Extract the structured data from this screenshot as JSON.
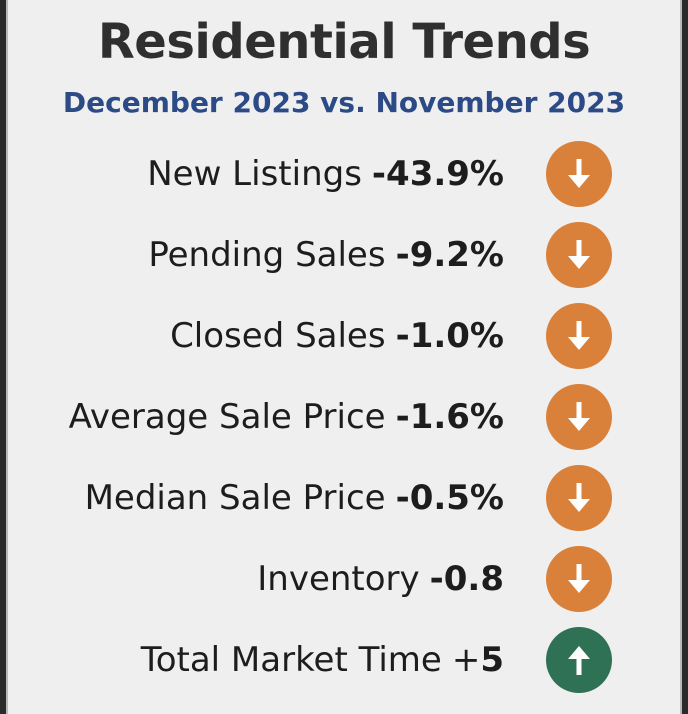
{
  "title": "Residential Trends",
  "subtitle": "December 2023 vs. November 2023",
  "colors": {
    "down": "#d9803a",
    "up": "#2f7154",
    "title": "#2f2f2f",
    "subtitle": "#2c4b86",
    "background": "#efefef"
  },
  "metrics": [
    {
      "label": "New Listings",
      "value": "-43.9%",
      "trend": "down",
      "icon": "arrow-down-icon"
    },
    {
      "label": "Pending Sales",
      "value": "-9.2%",
      "trend": "down",
      "icon": "arrow-down-icon"
    },
    {
      "label": "Closed Sales",
      "value": "-1.0%",
      "trend": "down",
      "icon": "arrow-down-icon"
    },
    {
      "label": "Average Sale Price",
      "value": "-1.6%",
      "trend": "down",
      "icon": "arrow-down-icon"
    },
    {
      "label": "Median Sale Price",
      "value": "-0.5%",
      "trend": "down",
      "icon": "arrow-down-icon"
    },
    {
      "label": "Inventory",
      "value": "-0.8",
      "trend": "down",
      "icon": "arrow-down-icon"
    },
    {
      "label": "Total Market Time",
      "value_prefix": "+",
      "value": "5",
      "trend": "up",
      "icon": "arrow-up-icon"
    }
  ]
}
